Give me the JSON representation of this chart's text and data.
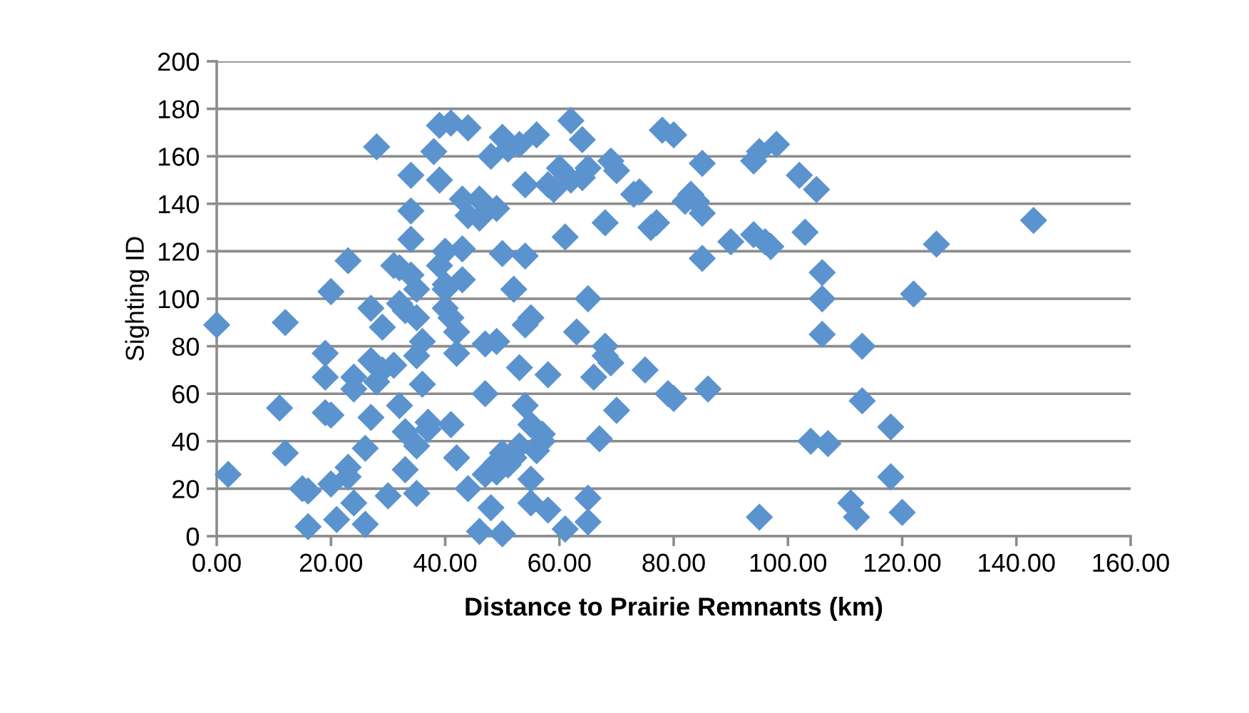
{
  "chart_data": {
    "type": "scatter",
    "xlabel": "Distance to Prairie Remnants (km)",
    "ylabel": "Sighting ID",
    "marker": "diamond",
    "grid": "y",
    "color": "#5b93cf",
    "xlim": [
      0,
      160
    ],
    "ylim": [
      0,
      200
    ],
    "xticks": [
      {
        "value": 0,
        "label": "0.00"
      },
      {
        "value": 20,
        "label": "20.00"
      },
      {
        "value": 40,
        "label": "40.00"
      },
      {
        "value": 60,
        "label": "60.00"
      },
      {
        "value": 80,
        "label": "80.00"
      },
      {
        "value": 100,
        "label": "100.00"
      },
      {
        "value": 120,
        "label": "120.00"
      },
      {
        "value": 140,
        "label": "140.00"
      },
      {
        "value": 160,
        "label": "160.00"
      }
    ],
    "yticks": [
      0,
      20,
      40,
      60,
      80,
      100,
      120,
      140,
      160,
      180,
      200
    ],
    "x": [
      0,
      2,
      11,
      12,
      12,
      15,
      16,
      16,
      19,
      19,
      19,
      20,
      20,
      20,
      21,
      23,
      23,
      23,
      24,
      24,
      24,
      26,
      26,
      27,
      27,
      27,
      28,
      28,
      29,
      29,
      30,
      31,
      32,
      31,
      32,
      32,
      33,
      33,
      33,
      34,
      34,
      34,
      34,
      35,
      35,
      35,
      35,
      35,
      36,
      36,
      37,
      37,
      38,
      39,
      39,
      39,
      40,
      40,
      40,
      40,
      41,
      41,
      41,
      42,
      42,
      42,
      43,
      43,
      43,
      44,
      44,
      44,
      46,
      46,
      46,
      47,
      47,
      47,
      48,
      48,
      49,
      49,
      49,
      49,
      50,
      50,
      50,
      50,
      51,
      51,
      52,
      52,
      53,
      53,
      53,
      54,
      54,
      54,
      54,
      55,
      55,
      55,
      55,
      56,
      56,
      57,
      57,
      58,
      58,
      58,
      59,
      60,
      61,
      61,
      62,
      62,
      63,
      64,
      64,
      65,
      65,
      65,
      65,
      66,
      67,
      68,
      68,
      68,
      69,
      69,
      70,
      70,
      73,
      74,
      75,
      76,
      77,
      78,
      79,
      80,
      80,
      82,
      83,
      84,
      85,
      85,
      85,
      86,
      90,
      94,
      94,
      95,
      95,
      96,
      97,
      98,
      102,
      103,
      104,
      105,
      106,
      106,
      106,
      107,
      111,
      112,
      113,
      113,
      118,
      118,
      120,
      122,
      126,
      143
    ],
    "values": [
      89,
      26,
      54,
      35,
      90,
      20,
      19,
      4,
      77,
      67,
      52,
      51,
      103,
      22,
      7,
      29,
      25,
      116,
      67,
      62,
      14,
      5,
      37,
      96,
      74,
      50,
      164,
      65,
      88,
      70,
      17,
      114,
      113,
      72,
      55,
      98,
      95,
      44,
      28,
      152,
      125,
      137,
      110,
      92,
      104,
      76,
      38,
      18,
      64,
      82,
      45,
      48,
      162,
      173,
      150,
      114,
      120,
      106,
      96,
      104,
      174,
      47,
      92,
      33,
      77,
      86,
      142,
      121,
      108,
      172,
      135,
      20,
      142,
      134,
      2,
      81,
      60,
      26,
      160,
      12,
      27,
      31,
      138,
      82,
      168,
      119,
      35,
      1,
      163,
      30,
      104,
      33,
      165,
      38,
      71,
      148,
      118,
      89,
      55,
      92,
      47,
      24,
      14,
      36,
      169,
      43,
      40,
      11,
      148,
      68,
      146,
      155,
      3,
      126,
      175,
      150,
      86,
      167,
      151,
      155,
      100,
      16,
      6,
      67,
      41,
      80,
      76,
      132,
      158,
      73,
      154,
      53,
      144,
      145,
      70,
      130,
      132,
      171,
      60,
      169,
      58,
      141,
      144,
      141,
      117,
      157,
      136,
      62,
      124,
      158,
      127,
      162,
      8,
      124,
      122,
      165,
      152,
      128,
      40,
      146,
      100,
      85,
      111,
      39,
      14,
      8,
      57,
      80,
      25,
      46,
      10,
      102,
      123,
      133
    ]
  }
}
